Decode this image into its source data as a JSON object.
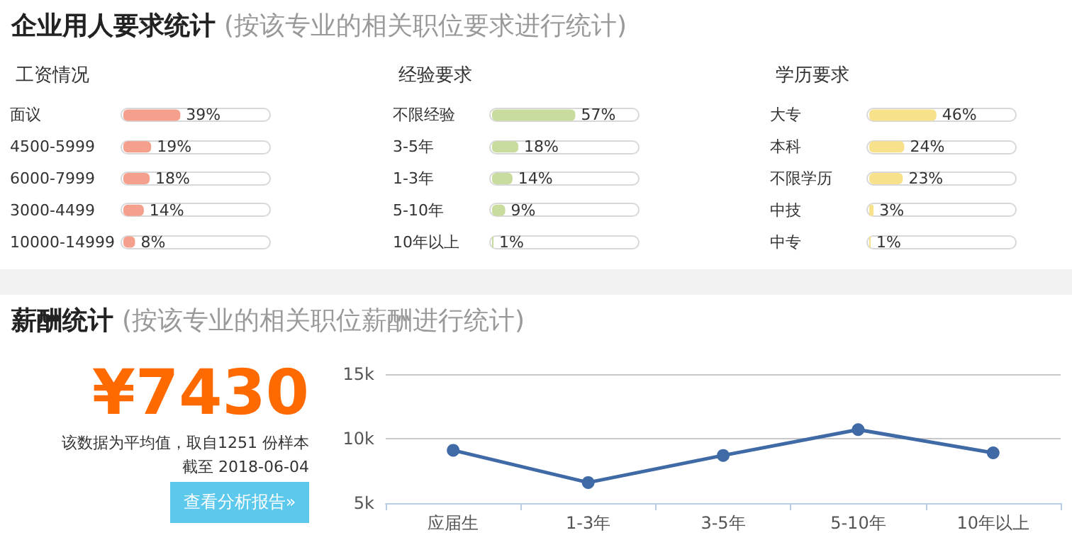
{
  "chart_data": [
    {
      "type": "other",
      "title": "企业用人要求统计",
      "subtitle": "(按该专业的相关职位要求进行统计)"
    },
    {
      "type": "bar",
      "title": "工资情况",
      "orientation": "horizontal",
      "categories": [
        "面议",
        "4500-5999",
        "6000-7999",
        "3000-4499",
        "10000-14999"
      ],
      "values": [
        39,
        19,
        18,
        14,
        8
      ],
      "value_labels": [
        "39%",
        "19%",
        "18%",
        "14%",
        "8%"
      ],
      "color": "#f4a08c",
      "xlim": [
        0,
        100
      ],
      "tick_labels": "y"
    },
    {
      "type": "bar",
      "title": "经验要求",
      "orientation": "horizontal",
      "categories": [
        "不限经验",
        "3-5年",
        "1-3年",
        "5-10年",
        "10年以上"
      ],
      "values": [
        57,
        18,
        14,
        9,
        1
      ],
      "value_labels": [
        "57%",
        "18%",
        "14%",
        "9%",
        "1%"
      ],
      "color": "#c8dc9e",
      "xlim": [
        0,
        100
      ],
      "tick_labels": "y"
    },
    {
      "type": "bar",
      "title": "学历要求",
      "orientation": "horizontal",
      "categories": [
        "大专",
        "本科",
        "不限学历",
        "中技",
        "中专"
      ],
      "values": [
        46,
        24,
        23,
        3,
        1
      ],
      "value_labels": [
        "46%",
        "24%",
        "23%",
        "3%",
        "1%"
      ],
      "color": "#f7e18a",
      "xlim": [
        0,
        100
      ],
      "tick_labels": "y"
    },
    {
      "type": "other",
      "title": "薪酬统计",
      "subtitle": "(按该专业的相关职位薪酬进行统计)",
      "annotations": [
        "¥7430",
        "该数据为平均值，取自1251 份样本",
        "截至 2018-06-04",
        "查看分析报告»"
      ]
    },
    {
      "type": "line",
      "categories": [
        "应届生",
        "1-3年",
        "3-5年",
        "5-10年",
        "10年以上"
      ],
      "values": [
        9.1,
        6.6,
        8.7,
        10.7,
        8.9
      ],
      "color": "#3f6aa6",
      "marker": "circle",
      "line_style": "solid",
      "ylim": [
        5,
        15
      ],
      "yticks": [
        {
          "value": 5,
          "label": "5k"
        },
        {
          "value": 10,
          "label": "10k"
        },
        {
          "value": 15,
          "label": "15k"
        }
      ],
      "grid": "y"
    }
  ]
}
